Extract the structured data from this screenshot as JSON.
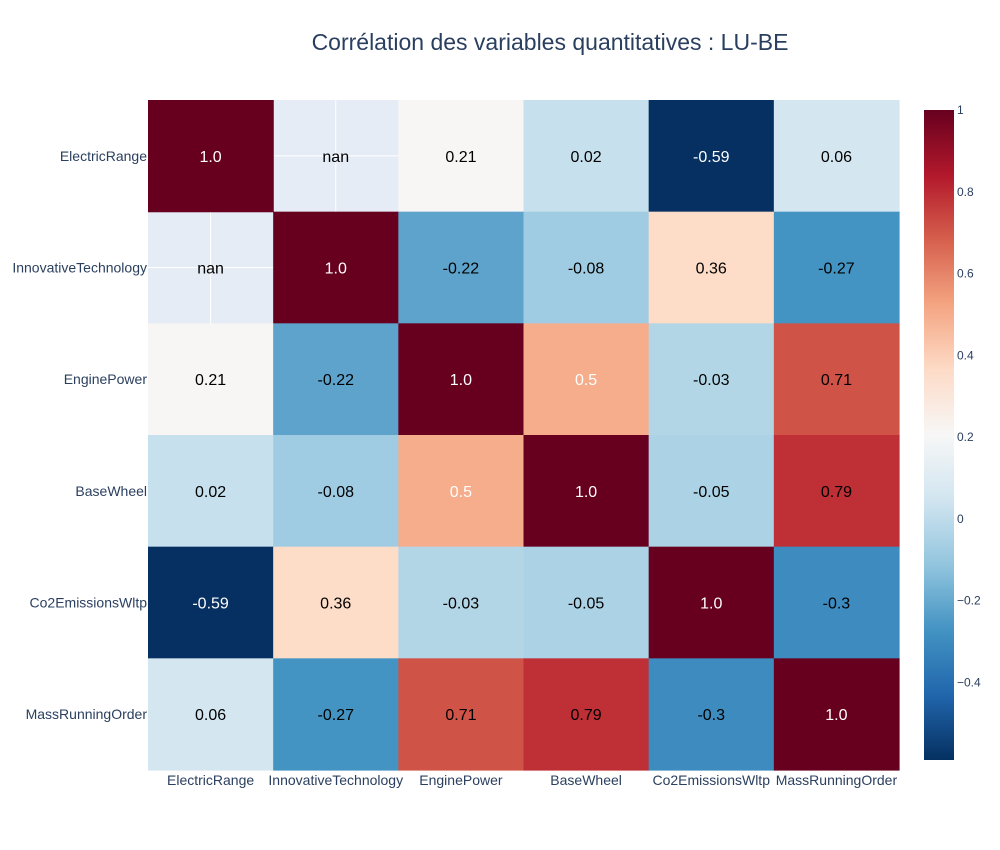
{
  "chart_data": {
    "type": "heatmap",
    "title": "Corrélation des variables quantitatives : LU-BE",
    "xlabel": "",
    "ylabel": "",
    "x_categories": [
      "ElectricRange",
      "InnovativeTechnology",
      "EnginePower",
      "BaseWheel",
      "Co2EmissionsWltp",
      "MassRunningOrder"
    ],
    "y_categories": [
      "ElectricRange",
      "InnovativeTechnology",
      "EnginePower",
      "BaseWheel",
      "Co2EmissionsWltp",
      "MassRunningOrder"
    ],
    "values": [
      [
        1.0,
        null,
        0.21,
        0.02,
        -0.59,
        0.06
      ],
      [
        null,
        1.0,
        -0.22,
        -0.08,
        0.36,
        -0.27
      ],
      [
        0.21,
        -0.22,
        1.0,
        0.5,
        -0.03,
        0.71
      ],
      [
        0.02,
        -0.08,
        0.5,
        1.0,
        -0.05,
        0.79
      ],
      [
        -0.59,
        0.36,
        -0.03,
        -0.05,
        1.0,
        -0.3
      ],
      [
        0.06,
        -0.27,
        0.71,
        0.79,
        -0.3,
        1.0
      ]
    ],
    "labels": [
      [
        "1.0",
        "nan",
        "0.21",
        "0.02",
        "-0.59",
        "0.06"
      ],
      [
        "nan",
        "1.0",
        "-0.22",
        "-0.08",
        "0.36",
        "-0.27"
      ],
      [
        "0.21",
        "-0.22",
        "1.0",
        "0.5",
        "-0.03",
        "0.71"
      ],
      [
        "0.02",
        "-0.08",
        "0.5",
        "1.0",
        "-0.05",
        "0.79"
      ],
      [
        "-0.59",
        "0.36",
        "-0.03",
        "-0.05",
        "1.0",
        "-0.3"
      ],
      [
        "0.06",
        "-0.27",
        "0.71",
        "0.79",
        "-0.3",
        "1.0"
      ]
    ],
    "colorscale": "RdBu_r",
    "zrange": [
      -0.59,
      1.0
    ],
    "colorbar_ticks": [
      1,
      0.8,
      0.6,
      0.4,
      0.2,
      0,
      -0.2,
      -0.4
    ],
    "colorbar_tick_labels": [
      "1",
      "0.8",
      "0.6",
      "0.4",
      "0.2",
      "0",
      "−0.2",
      "−0.4"
    ],
    "nan_color": "#e5ecf6",
    "title_color": "#2a3f5f",
    "grid": true,
    "legend": "colorbar-right"
  }
}
